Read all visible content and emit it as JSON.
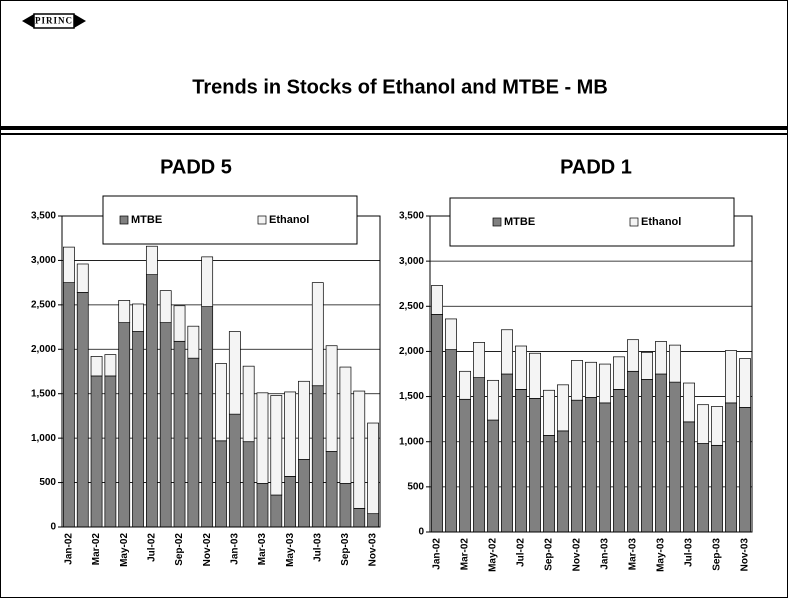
{
  "logo": "PIRINC",
  "title": "Trends in Stocks of Ethanol and MTBE - MB",
  "chart_data": [
    {
      "type": "bar",
      "stacked": true,
      "title": "PADD 5",
      "grid": true,
      "legend": "top",
      "categories": [
        "Jan-02",
        null,
        "Mar-02",
        null,
        "May-02",
        null,
        "Jul-02",
        null,
        "Sep-02",
        null,
        "Nov-02",
        null,
        "Jan-03",
        null,
        "Mar-03",
        null,
        "May-03",
        null,
        "Jul-03",
        null,
        "Sep-03",
        null,
        "Nov-03"
      ],
      "series": [
        {
          "name": "MTBE",
          "color": "#808080",
          "values": [
            2750,
            2640,
            1700,
            1700,
            2300,
            2200,
            2840,
            2300,
            2090,
            1900,
            2480,
            970,
            1270,
            960,
            490,
            360,
            570,
            760,
            1590,
            850,
            490,
            210,
            150
          ]
        },
        {
          "name": "Ethanol",
          "color": "#f4f4f4",
          "values": [
            400,
            320,
            220,
            240,
            250,
            310,
            320,
            360,
            400,
            360,
            560,
            870,
            930,
            850,
            1020,
            1120,
            950,
            880,
            1160,
            1190,
            1310,
            1320,
            1020
          ]
        }
      ],
      "ylim": [
        0,
        3500
      ],
      "yticks": [
        0,
        500,
        {
          "value": 1000,
          "label": "1,000"
        },
        {
          "value": 1500,
          "label": "1,500"
        },
        {
          "value": 2000,
          "label": "2,000"
        },
        {
          "value": 2500,
          "label": "2,500"
        },
        {
          "value": 3000,
          "label": "3,000"
        },
        {
          "value": 3500,
          "label": "3,500"
        }
      ]
    },
    {
      "type": "bar",
      "stacked": true,
      "title": "PADD 1",
      "grid": true,
      "legend": "top",
      "categories": [
        "Jan-02",
        null,
        "Mar-02",
        null,
        "May-02",
        null,
        "Jul-02",
        null,
        "Sep-02",
        null,
        "Nov-02",
        null,
        "Jan-03",
        null,
        "Mar-03",
        null,
        "May-03",
        null,
        "Jul-03",
        null,
        "Sep-03",
        null,
        "Nov-03"
      ],
      "series": [
        {
          "name": "MTBE",
          "color": "#808080",
          "values": [
            2410,
            2020,
            1470,
            1710,
            1240,
            1750,
            1580,
            1480,
            1070,
            1120,
            1460,
            1490,
            1430,
            1580,
            1780,
            1690,
            1750,
            1660,
            1220,
            980,
            960,
            1430,
            1380
          ]
        },
        {
          "name": "Ethanol",
          "color": "#f4f4f4",
          "values": [
            320,
            340,
            310,
            390,
            440,
            490,
            480,
            500,
            500,
            510,
            440,
            390,
            430,
            360,
            350,
            300,
            360,
            410,
            430,
            430,
            430,
            580,
            540
          ]
        }
      ],
      "ylim": [
        0,
        3500
      ],
      "yticks": [
        0,
        500,
        {
          "value": 1000,
          "label": "1,000"
        },
        {
          "value": 1500,
          "label": "1,500"
        },
        {
          "value": 2000,
          "label": "2,000"
        },
        {
          "value": 2500,
          "label": "2,500"
        },
        {
          "value": 3000,
          "label": "3,000"
        },
        {
          "value": 3500,
          "label": "3,500"
        }
      ]
    }
  ]
}
